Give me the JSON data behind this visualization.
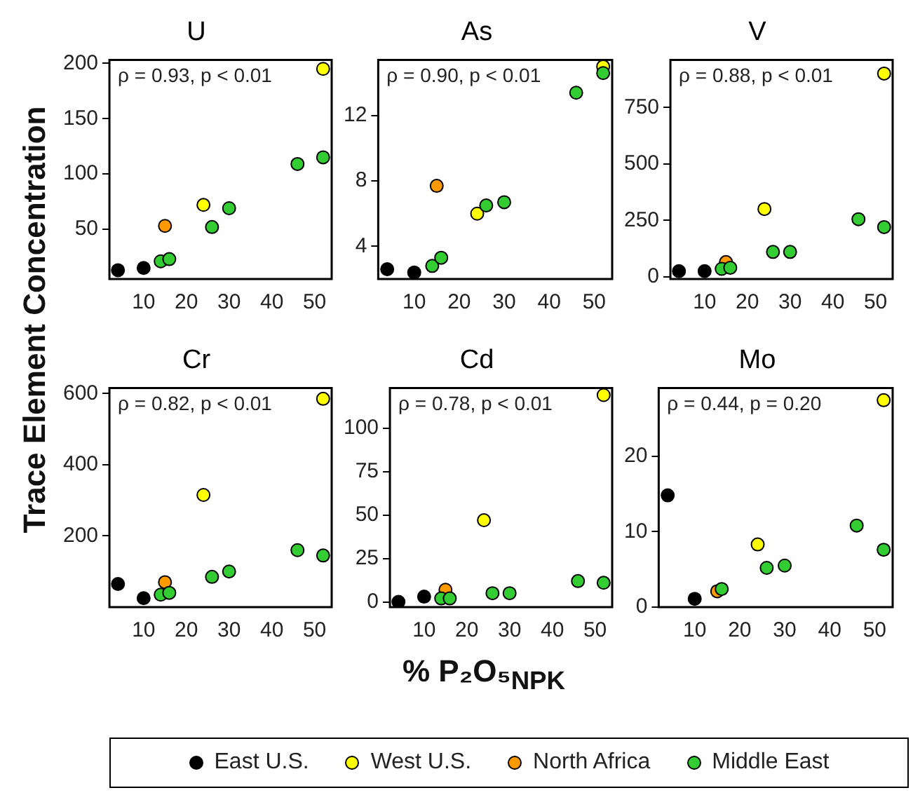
{
  "chart_data": [
    {
      "type": "scatter",
      "title": "U",
      "ylabel": "Trace Element Concentration",
      "annotations": [
        "ρ = 0.93, p < 0.01"
      ],
      "xlim": [
        2,
        54
      ],
      "xticks": [
        10,
        20,
        30,
        40,
        50
      ],
      "ylim": [
        5,
        203
      ],
      "yticks": [
        50,
        100,
        150,
        200
      ],
      "grid": false,
      "marker": "circle",
      "legend": "bottom",
      "series": [
        {
          "name": "East U.S.",
          "color": "#000000",
          "x": [
            4,
            10
          ],
          "values": [
            13,
            15
          ]
        },
        {
          "name": "West U.S.",
          "color": "#ffff00",
          "x": [
            24,
            52
          ],
          "values": [
            72,
            195
          ]
        },
        {
          "name": "North Africa",
          "color": "#ff9900",
          "x": [
            15
          ],
          "values": [
            53
          ]
        },
        {
          "name": "Middle East",
          "color": "#33cc33",
          "x": [
            14,
            16,
            26,
            30,
            46,
            52
          ],
          "values": [
            21,
            23,
            52,
            69,
            109,
            115
          ]
        }
      ]
    },
    {
      "type": "scatter",
      "title": "As",
      "annotations": [
        "ρ = 0.90, p < 0.01"
      ],
      "xlim": [
        2,
        54
      ],
      "xticks": [
        10,
        20,
        30,
        40,
        50
      ],
      "ylim": [
        2,
        15.4
      ],
      "yticks": [
        4,
        8,
        12
      ],
      "grid": false,
      "marker": "circle",
      "series": [
        {
          "color": "#000000",
          "x": [
            4,
            10
          ],
          "values": [
            2.6,
            2.4
          ]
        },
        {
          "color": "#ffff00",
          "x": [
            24,
            52
          ],
          "values": [
            6.0,
            15.0
          ]
        },
        {
          "color": "#ff9900",
          "x": [
            15
          ],
          "values": [
            7.7
          ]
        },
        {
          "color": "#33cc33",
          "x": [
            14,
            16,
            26,
            30,
            46,
            52
          ],
          "values": [
            2.8,
            3.3,
            6.5,
            6.7,
            13.4,
            14.6
          ]
        }
      ]
    },
    {
      "type": "scatter",
      "title": "V",
      "annotations": [
        "ρ = 0.88, p < 0.01"
      ],
      "xlim": [
        2,
        54
      ],
      "xticks": [
        10,
        20,
        30,
        40,
        50
      ],
      "ylim": [
        -10,
        960
      ],
      "yticks": [
        0,
        250,
        500,
        750
      ],
      "grid": false,
      "marker": "circle",
      "series": [
        {
          "color": "#000000",
          "x": [
            4,
            10
          ],
          "values": [
            25,
            25
          ]
        },
        {
          "color": "#ffff00",
          "x": [
            24,
            52
          ],
          "values": [
            300,
            900
          ]
        },
        {
          "color": "#ff9900",
          "x": [
            15
          ],
          "values": [
            65
          ]
        },
        {
          "color": "#33cc33",
          "x": [
            14,
            16,
            26,
            30,
            46,
            52
          ],
          "values": [
            35,
            40,
            110,
            110,
            255,
            220
          ]
        }
      ]
    },
    {
      "type": "scatter",
      "title": "Cr",
      "annotations": [
        "ρ = 0.82, p < 0.01"
      ],
      "xlim": [
        2,
        54
      ],
      "xticks": [
        10,
        20,
        30,
        40,
        50
      ],
      "ylim": [
        0,
        615
      ],
      "yticks": [
        200,
        400,
        600
      ],
      "grid": false,
      "marker": "circle",
      "series": [
        {
          "color": "#000000",
          "x": [
            4,
            10
          ],
          "values": [
            65,
            25
          ]
        },
        {
          "color": "#ffff00",
          "x": [
            24,
            52
          ],
          "values": [
            315,
            585
          ]
        },
        {
          "color": "#ff9900",
          "x": [
            15
          ],
          "values": [
            70
          ]
        },
        {
          "color": "#33cc33",
          "x": [
            14,
            16,
            26,
            30,
            46,
            52
          ],
          "values": [
            35,
            40,
            85,
            100,
            160,
            145
          ]
        }
      ]
    },
    {
      "type": "scatter",
      "title": "Cd",
      "xlabel": "% P₂O₅$_{NPK}$",
      "annotations": [
        "ρ = 0.78, p < 0.01"
      ],
      "xlim": [
        2,
        54
      ],
      "xticks": [
        10,
        20,
        30,
        40,
        50
      ],
      "ylim": [
        -3,
        123
      ],
      "yticks": [
        0,
        25,
        50,
        75,
        100
      ],
      "grid": false,
      "marker": "circle",
      "series": [
        {
          "color": "#000000",
          "x": [
            4,
            10
          ],
          "values": [
            0,
            3
          ]
        },
        {
          "color": "#ffff00",
          "x": [
            24,
            52
          ],
          "values": [
            47,
            119
          ]
        },
        {
          "color": "#ff9900",
          "x": [
            15
          ],
          "values": [
            7
          ]
        },
        {
          "color": "#33cc33",
          "x": [
            14,
            16,
            26,
            30,
            46,
            52
          ],
          "values": [
            2,
            2,
            5,
            5,
            12,
            11
          ]
        }
      ]
    },
    {
      "type": "scatter",
      "title": "Mo",
      "annotations": [
        "ρ = 0.44, p = 0.20"
      ],
      "xlim": [
        2,
        54
      ],
      "xticks": [
        10,
        20,
        30,
        40,
        50
      ],
      "ylim": [
        0,
        29
      ],
      "yticks": [
        0,
        10,
        20
      ],
      "grid": false,
      "marker": "circle",
      "series": [
        {
          "color": "#000000",
          "x": [
            4,
            10
          ],
          "values": [
            14.8,
            1.1
          ]
        },
        {
          "color": "#ffff00",
          "x": [
            24,
            52
          ],
          "values": [
            8.3,
            27.4
          ]
        },
        {
          "color": "#ff9900",
          "x": [
            15
          ],
          "values": [
            2.1
          ]
        },
        {
          "color": "#33cc33",
          "x": [
            16,
            26,
            30,
            46,
            52
          ],
          "values": [
            2.4,
            5.2,
            5.5,
            10.8,
            7.6
          ]
        }
      ]
    }
  ]
}
